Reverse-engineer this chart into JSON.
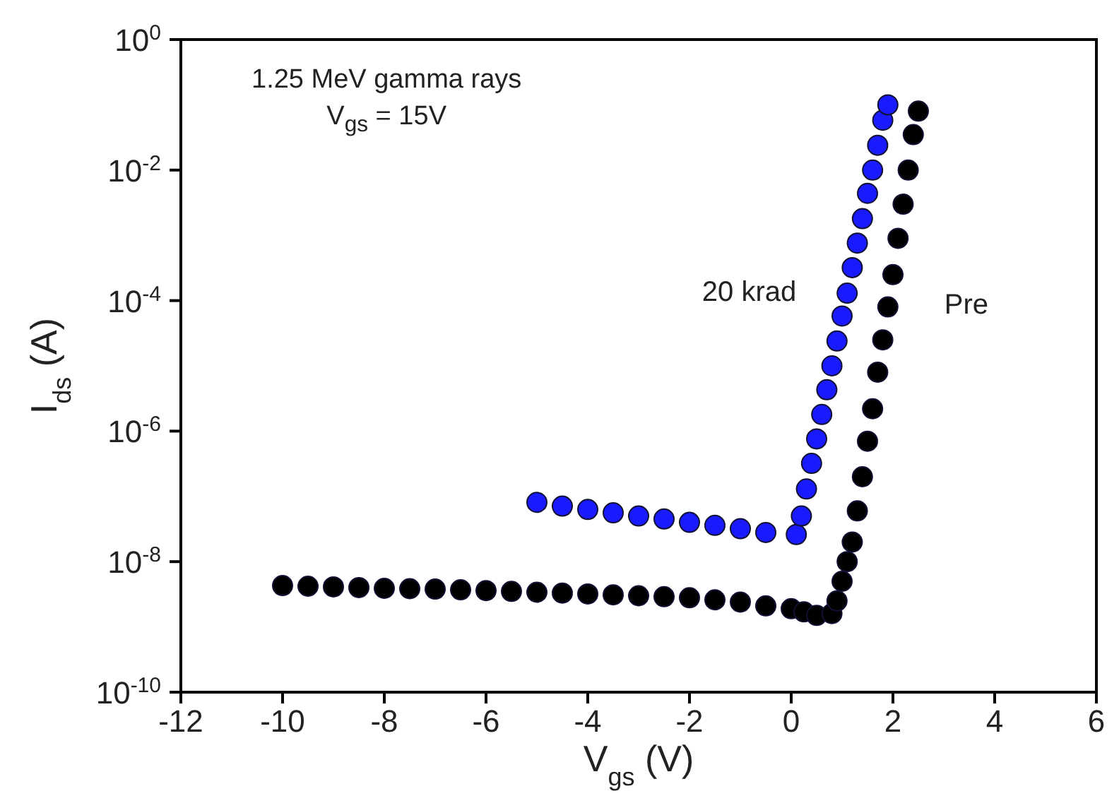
{
  "chart_data": {
    "type": "scatter",
    "xlabel": "V$_{gs}$ (V)",
    "ylabel": "I$_{ds}$ (A)",
    "log": "y",
    "marker": "circle",
    "annotations": [
      "1.25 MeV gamma rays",
      "V$_{gs}$ = 15V"
    ],
    "xlim": [
      -12,
      6
    ],
    "xticks": [
      -12,
      -10,
      -8,
      -6,
      -4,
      -2,
      0,
      2,
      4,
      6
    ],
    "ylim": [
      1e-10,
      1
    ],
    "yticks": [
      {
        "value": 1e-10,
        "label": "10$^{-10}$"
      },
      {
        "value": 1e-08,
        "label": "10$^{-8}$"
      },
      {
        "value": 1e-06,
        "label": "10$^{-6}$"
      },
      {
        "value": 0.0001,
        "label": "10$^{-4}$"
      },
      {
        "value": 0.01,
        "label": "10$^{-2}$"
      },
      {
        "value": 1,
        "label": "10$^{0}$"
      }
    ],
    "series": [
      {
        "name": "Pre",
        "color": "#000000",
        "x": [
          -10,
          -9.5,
          -9,
          -8.5,
          -8,
          -7.5,
          -7,
          -6.5,
          -6,
          -5.5,
          -5,
          -4.5,
          -4,
          -3.5,
          -3,
          -2.5,
          -2,
          -1.5,
          -1,
          -0.5,
          0,
          0.25,
          0.5,
          0.8,
          0.9,
          1.0,
          1.1,
          1.2,
          1.3,
          1.4,
          1.5,
          1.6,
          1.7,
          1.8,
          1.9,
          2.0,
          2.1,
          2.2,
          2.3,
          2.4,
          2.5
        ],
        "values": [
          4.3e-09,
          4.2e-09,
          4.1e-09,
          4e-09,
          3.9e-09,
          3.85e-09,
          3.8e-09,
          3.7e-09,
          3.6e-09,
          3.5e-09,
          3.4e-09,
          3.3e-09,
          3.2e-09,
          3.1e-09,
          3e-09,
          2.9e-09,
          2.8e-09,
          2.6e-09,
          2.4e-09,
          2.1e-09,
          1.9e-09,
          1.7e-09,
          1.5e-09,
          1.6e-09,
          2.5e-09,
          5e-09,
          1e-08,
          2e-08,
          6e-08,
          2e-07,
          7e-07,
          2.2e-06,
          8e-06,
          2.5e-05,
          8e-05,
          0.00025,
          0.0009,
          0.003,
          0.01,
          0.035,
          0.08
        ]
      },
      {
        "name": "20 krad",
        "color": "#1a1aff",
        "x": [
          -5,
          -4.5,
          -4,
          -3.5,
          -3,
          -2.5,
          -2,
          -1.5,
          -1,
          -0.5,
          0.1,
          0.2,
          0.3,
          0.4,
          0.5,
          0.6,
          0.7,
          0.8,
          0.9,
          1.0,
          1.1,
          1.2,
          1.3,
          1.4,
          1.5,
          1.6,
          1.7,
          1.8,
          1.9
        ],
        "values": [
          8.1e-08,
          7.1e-08,
          6.3e-08,
          5.6e-08,
          5e-08,
          4.5e-08,
          4e-08,
          3.6e-08,
          3.2e-08,
          2.8e-08,
          2.6e-08,
          5e-08,
          1.3e-07,
          3.2e-07,
          7.6e-07,
          1.8e-06,
          4.3e-06,
          1e-05,
          2.4e-05,
          5.8e-05,
          0.00013,
          0.00032,
          0.00076,
          0.0018,
          0.0044,
          0.01,
          0.024,
          0.058,
          0.1
        ]
      }
    ]
  }
}
